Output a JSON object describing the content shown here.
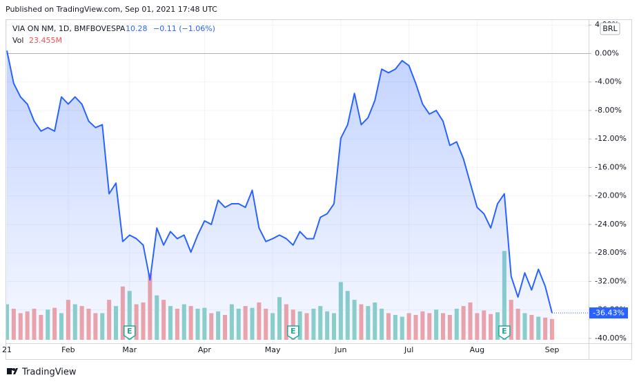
{
  "header": {
    "published": "Published on TradingView.com, Sep 01, 2021 17:48 UTC",
    "price": "10.28",
    "change": "−0.11 (−1.06%)"
  },
  "currency": "BRL",
  "footer": "TradingView",
  "chart_data": {
    "type": "area",
    "categories": [
      "21",
      null,
      null,
      null,
      null,
      null,
      null,
      null,
      null,
      "Feb",
      null,
      null,
      null,
      null,
      null,
      null,
      null,
      null,
      "Mar",
      null,
      null,
      null,
      null,
      null,
      null,
      null,
      null,
      null,
      null,
      "Apr",
      null,
      null,
      null,
      null,
      null,
      null,
      null,
      null,
      null,
      "May",
      null,
      null,
      null,
      null,
      null,
      null,
      null,
      null,
      null,
      "Jun",
      null,
      null,
      null,
      null,
      null,
      null,
      null,
      null,
      null,
      "Jul",
      null,
      null,
      null,
      null,
      null,
      null,
      null,
      null,
      null,
      "Aug",
      null,
      null,
      null,
      null,
      null,
      null,
      null,
      null,
      null,
      null,
      "Sep"
    ],
    "series": [
      {
        "name": "VIA ON NM, 1D, BMFBOVESPA",
        "color": "#2962ff",
        "values": [
          0.4,
          -4.2,
          -6.1,
          -7.1,
          -9.5,
          -10.9,
          -10.4,
          -10.9,
          -6.1,
          -7.1,
          -6.1,
          -7.1,
          -9.5,
          -10.4,
          -10,
          -19.7,
          -18.2,
          -26.4,
          -25.5,
          -26,
          -26.9,
          -31.8,
          -24.5,
          -26.9,
          -25,
          -26,
          -25.5,
          -27.9,
          -25.5,
          -23.5,
          -24,
          -20.6,
          -21.6,
          -21.1,
          -21.1,
          -21.6,
          -19.2,
          -24.5,
          -26.4,
          -26,
          -25.5,
          -26,
          -26.9,
          -25,
          -26,
          -26,
          -23,
          -22.5,
          -21.1,
          -11.9,
          -10,
          -5.6,
          -10,
          -9,
          -6.6,
          -2.2,
          -2.7,
          -2.2,
          -1,
          -1.7,
          -4.2,
          -7.1,
          -8.5,
          -8,
          -9.5,
          -12.9,
          -12.4,
          -14.8,
          -18.2,
          -21.6,
          -22.5,
          -24.5,
          -21.1,
          -19.7,
          -31.3,
          -34.2,
          -30.8,
          -33.2,
          -30.3,
          -32.7,
          -36.43
        ],
        "value_labels": [
          null,
          null,
          null,
          null,
          null,
          null,
          null,
          null,
          null,
          null,
          null,
          null,
          null,
          null,
          null,
          null,
          null,
          null,
          null,
          null,
          null,
          null,
          null,
          null,
          null,
          null,
          null,
          null,
          null,
          null,
          null,
          null,
          null,
          null,
          null,
          null,
          null,
          null,
          null,
          null,
          null,
          null,
          null,
          null,
          null,
          null,
          null,
          null,
          null,
          null,
          null,
          null,
          null,
          null,
          null,
          null,
          null,
          null,
          null,
          null,
          null,
          null,
          null,
          null,
          null,
          null,
          null,
          null,
          null,
          null,
          null,
          null,
          null,
          null,
          null,
          null,
          null,
          null,
          null,
          null,
          "-36.43%"
        ]
      },
      {
        "name": "Vol",
        "type": "bar",
        "axis": "y2",
        "up_color": "#8fd3c8",
        "down_color": "#f4a6a6",
        "values": [
          40,
          35,
          30,
          32,
          35,
          28,
          34,
          36,
          30,
          45,
          40,
          38,
          35,
          30,
          30,
          45,
          38,
          60,
          55,
          40,
          42,
          75,
          50,
          45,
          38,
          35,
          40,
          38,
          35,
          36,
          30,
          32,
          28,
          40,
          35,
          38,
          36,
          42,
          35,
          30,
          48,
          40,
          34,
          32,
          30,
          35,
          38,
          32,
          30,
          65,
          55,
          45,
          40,
          38,
          42,
          35,
          30,
          28,
          26,
          30,
          28,
          32,
          30,
          34,
          30,
          28,
          35,
          38,
          42,
          30,
          33,
          29,
          31,
          100,
          45,
          35,
          30,
          28,
          26,
          25,
          23.455
        ],
        "value_labels": [
          null,
          null,
          null,
          null,
          null,
          null,
          null,
          null,
          null,
          null,
          null,
          null,
          null,
          null,
          null,
          null,
          null,
          null,
          null,
          null,
          null,
          null,
          null,
          null,
          null,
          null,
          null,
          null,
          null,
          null,
          null,
          null,
          null,
          null,
          null,
          null,
          null,
          null,
          null,
          null,
          null,
          null,
          null,
          null,
          null,
          null,
          null,
          null,
          null,
          null,
          null,
          null,
          null,
          null,
          null,
          null,
          null,
          null,
          null,
          null,
          null,
          null,
          null,
          null,
          null,
          null,
          null,
          null,
          null,
          null,
          null,
          null,
          null,
          null,
          null,
          null,
          null,
          null,
          null,
          null,
          "23.455M"
        ]
      }
    ],
    "events": [
      {
        "index": 18,
        "label": "E"
      },
      {
        "index": 42,
        "label": "E"
      },
      {
        "index": 73,
        "label": "E"
      }
    ],
    "ylim": [
      -40.2,
      4.7
    ],
    "yticks": [
      {
        "value": 4,
        "label": "4.00%"
      },
      {
        "value": 0,
        "label": "0.00%"
      },
      {
        "value": -4,
        "label": "-4.00%"
      },
      {
        "value": -8,
        "label": "-8.00%"
      },
      {
        "value": -12,
        "label": "-12.00%"
      },
      {
        "value": -16,
        "label": "-16.00%"
      },
      {
        "value": -20,
        "label": "-20.00%"
      },
      {
        "value": -24,
        "label": "-24.00%"
      },
      {
        "value": -28,
        "label": "-28.00%"
      },
      {
        "value": -32,
        "label": "-32.00%"
      },
      {
        "value": -36,
        "label": "-36.00%"
      },
      {
        "value": -40,
        "label": "-40.00%"
      }
    ],
    "y2lim": [
      0,
      360
    ],
    "grid": true
  }
}
